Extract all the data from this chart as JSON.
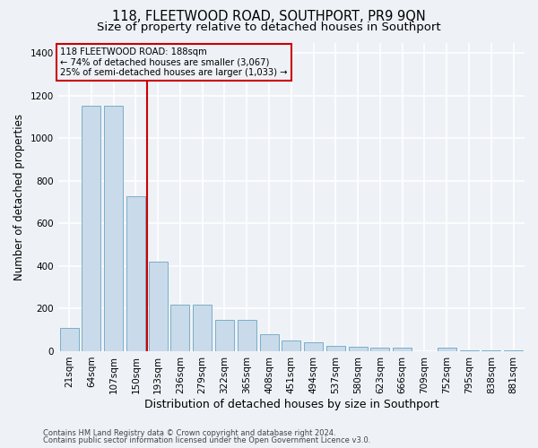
{
  "title": "118, FLEETWOOD ROAD, SOUTHPORT, PR9 9QN",
  "subtitle": "Size of property relative to detached houses in Southport",
  "xlabel": "Distribution of detached houses by size in Southport",
  "ylabel": "Number of detached properties",
  "footer_line1": "Contains HM Land Registry data © Crown copyright and database right 2024.",
  "footer_line2": "Contains public sector information licensed under the Open Government Licence v3.0.",
  "categories": [
    "21sqm",
    "64sqm",
    "107sqm",
    "150sqm",
    "193sqm",
    "236sqm",
    "279sqm",
    "322sqm",
    "365sqm",
    "408sqm",
    "451sqm",
    "494sqm",
    "537sqm",
    "580sqm",
    "623sqm",
    "666sqm",
    "709sqm",
    "752sqm",
    "795sqm",
    "838sqm",
    "881sqm"
  ],
  "values": [
    108,
    1155,
    1155,
    730,
    420,
    218,
    218,
    148,
    148,
    78,
    52,
    42,
    25,
    20,
    18,
    15,
    0,
    15,
    5,
    3,
    2
  ],
  "bar_color": "#c9daea",
  "bar_edge_color": "#7aaec8",
  "red_line_x": 3.5,
  "annotation_text_line1": "118 FLEETWOOD ROAD: 188sqm",
  "annotation_text_line2": "← 74% of detached houses are smaller (3,067)",
  "annotation_text_line3": "25% of semi-detached houses are larger (1,033) →",
  "annotation_box_color": "#cc0000",
  "ylim": [
    0,
    1450
  ],
  "yticks": [
    0,
    200,
    400,
    600,
    800,
    1000,
    1200,
    1400
  ],
  "background_color": "#eef2f7",
  "grid_color": "#ffffff",
  "title_fontsize": 10.5,
  "subtitle_fontsize": 9.5,
  "axis_label_fontsize": 8.5,
  "tick_fontsize": 7.5,
  "footer_fontsize": 6.0
}
